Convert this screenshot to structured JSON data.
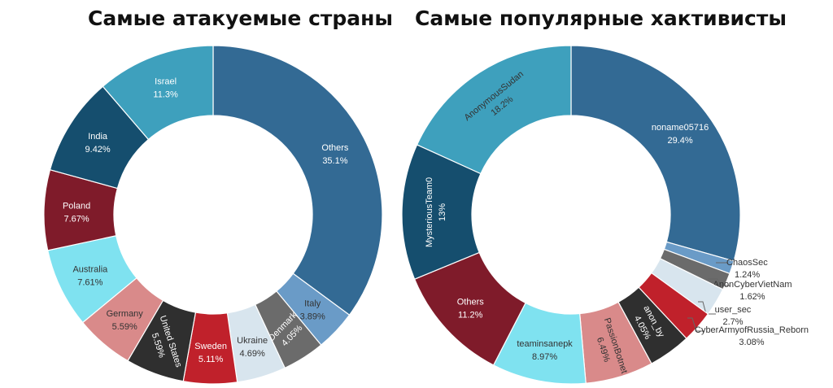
{
  "chart_data": [
    {
      "type": "pie",
      "donut": true,
      "title": "Самые атакуемые страны",
      "slices": [
        {
          "label": "Others",
          "value_text": "35.1%",
          "value": 35.1,
          "color": "#336a94",
          "text_color": "#ffffff"
        },
        {
          "label": "Italy",
          "value_text": "3.89%",
          "value": 3.89,
          "color": "#6a9bc7",
          "text_color": "#333333"
        },
        {
          "label": "Denmark",
          "value_text": "4.05%",
          "value": 4.05,
          "color": "#6b6b6b",
          "text_color": "#ffffff"
        },
        {
          "label": "Ukraine",
          "value_text": "4.69%",
          "value": 4.69,
          "color": "#d8e5ee",
          "text_color": "#333333"
        },
        {
          "label": "Sweden",
          "value_text": "5.11%",
          "value": 5.11,
          "color": "#c0212b",
          "text_color": "#ffffff"
        },
        {
          "label": "United States",
          "value_text": "5.59%",
          "value": 5.59,
          "color": "#2f2f2f",
          "text_color": "#ffffff"
        },
        {
          "label": "Germany",
          "value_text": "5.59%",
          "value": 5.59,
          "color": "#d98a8a",
          "text_color": "#333333"
        },
        {
          "label": "Australia",
          "value_text": "7.61%",
          "value": 7.61,
          "color": "#7fe2f0",
          "text_color": "#333333"
        },
        {
          "label": "Poland",
          "value_text": "7.67%",
          "value": 7.67,
          "color": "#7f1b2a",
          "text_color": "#ffffff"
        },
        {
          "label": "India",
          "value_text": "9.42%",
          "value": 9.42,
          "color": "#154e6e",
          "text_color": "#ffffff"
        },
        {
          "label": "Israel",
          "value_text": "11.3%",
          "value": 11.3,
          "color": "#3ea0bd",
          "text_color": "#ffffff"
        }
      ]
    },
    {
      "type": "pie",
      "donut": true,
      "title": "Самые популярные хактивисты",
      "slices": [
        {
          "label": "noname05716",
          "value_text": "29.4%",
          "value": 29.4,
          "color": "#336a94",
          "text_color": "#ffffff"
        },
        {
          "label": "ChaosSec",
          "value_text": "1.24%",
          "value": 1.24,
          "color": "#6a9bc7",
          "text_color": "#333333",
          "external": true
        },
        {
          "label": "AnonCyberVietNam",
          "value_text": "1.62%",
          "value": 1.62,
          "color": "#6b6b6b",
          "text_color": "#333333",
          "external": true
        },
        {
          "label": "user_sec",
          "value_text": "2.7%",
          "value": 2.7,
          "color": "#d8e5ee",
          "text_color": "#333333",
          "external": true
        },
        {
          "label": "CyberArmyofRussia_Reborn",
          "value_text": "3.08%",
          "value": 3.08,
          "color": "#c0212b",
          "text_color": "#333333",
          "external": true
        },
        {
          "label": "anon_by",
          "value_text": "4.05%",
          "value": 4.05,
          "color": "#2f2f2f",
          "text_color": "#ffffff"
        },
        {
          "label": "PassionBotnet",
          "value_text": "6.49%",
          "value": 6.49,
          "color": "#d98a8a",
          "text_color": "#333333"
        },
        {
          "label": "teaminsanepk",
          "value_text": "8.97%",
          "value": 8.97,
          "color": "#7fe2f0",
          "text_color": "#333333"
        },
        {
          "label": "Others",
          "value_text": "11.2%",
          "value": 11.2,
          "color": "#7f1b2a",
          "text_color": "#ffffff"
        },
        {
          "label": "MysteriousTeam0",
          "value_text": "13%",
          "value": 13,
          "color": "#154e6e",
          "text_color": "#ffffff"
        },
        {
          "label": "AnonymousSudan",
          "value_text": "18.2%",
          "value": 18.2,
          "color": "#3ea0bd",
          "text_color": "#333333"
        }
      ]
    }
  ]
}
